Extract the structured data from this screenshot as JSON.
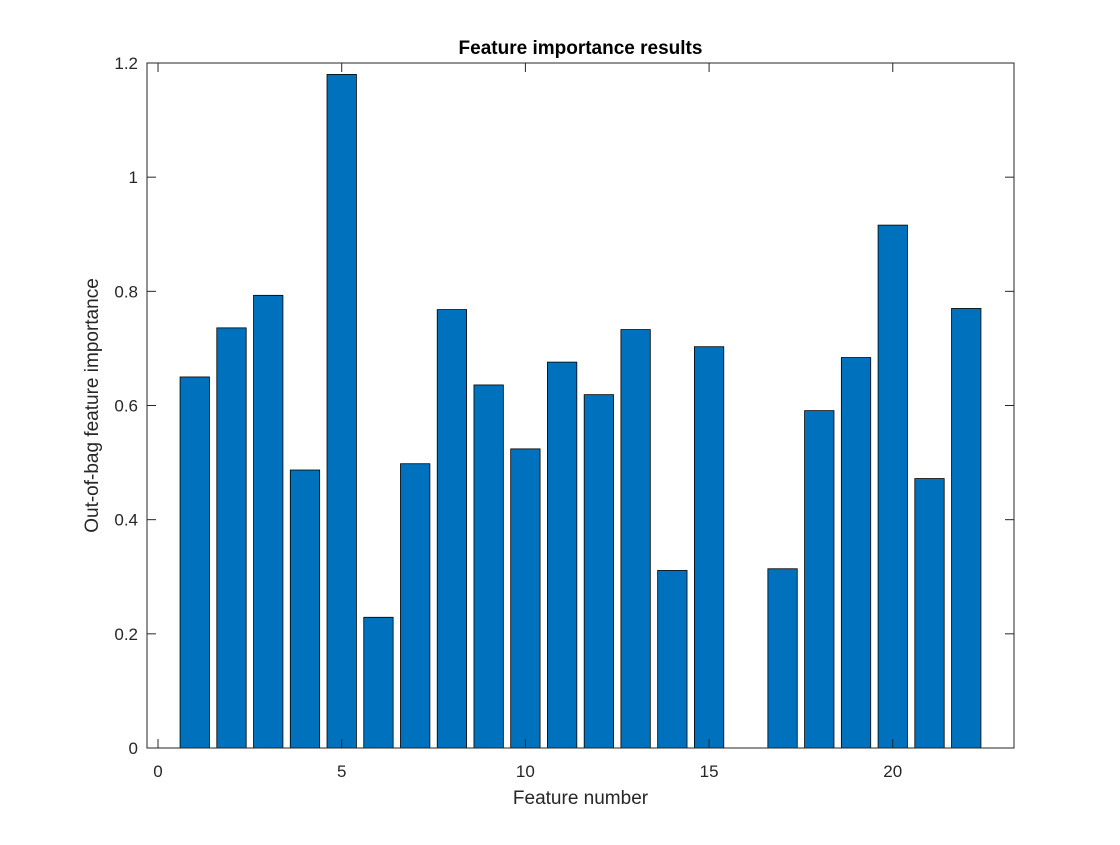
{
  "chart_data": {
    "type": "bar",
    "title": "Feature importance results",
    "xlabel": "Feature number",
    "ylabel": "Out-of-bag feature importance",
    "xlim": [
      -0.3,
      23.3
    ],
    "ylim": [
      0,
      1.2
    ],
    "xticks": [
      0,
      5,
      10,
      15,
      20
    ],
    "yticks": [
      0,
      0.2,
      0.4,
      0.6,
      0.8,
      1,
      1.2
    ],
    "xtick_labels": [
      "0",
      "5",
      "10",
      "15",
      "20"
    ],
    "ytick_labels": [
      "0",
      "0.2",
      "0.4",
      "0.6",
      "0.8",
      "1",
      "1.2"
    ],
    "categories": [
      1,
      2,
      3,
      4,
      5,
      6,
      7,
      8,
      9,
      10,
      11,
      12,
      13,
      14,
      15,
      16,
      17,
      18,
      19,
      20,
      21,
      22
    ],
    "values": [
      0.65,
      0.736,
      0.793,
      0.487,
      1.18,
      0.229,
      0.498,
      0.768,
      0.636,
      0.524,
      0.676,
      0.619,
      0.733,
      0.311,
      0.703,
      0.0,
      0.314,
      0.591,
      0.684,
      0.916,
      0.472,
      0.77
    ],
    "bar_color": "#0072BD",
    "bar_edge_color": "#000000",
    "grid": false,
    "box": true
  }
}
